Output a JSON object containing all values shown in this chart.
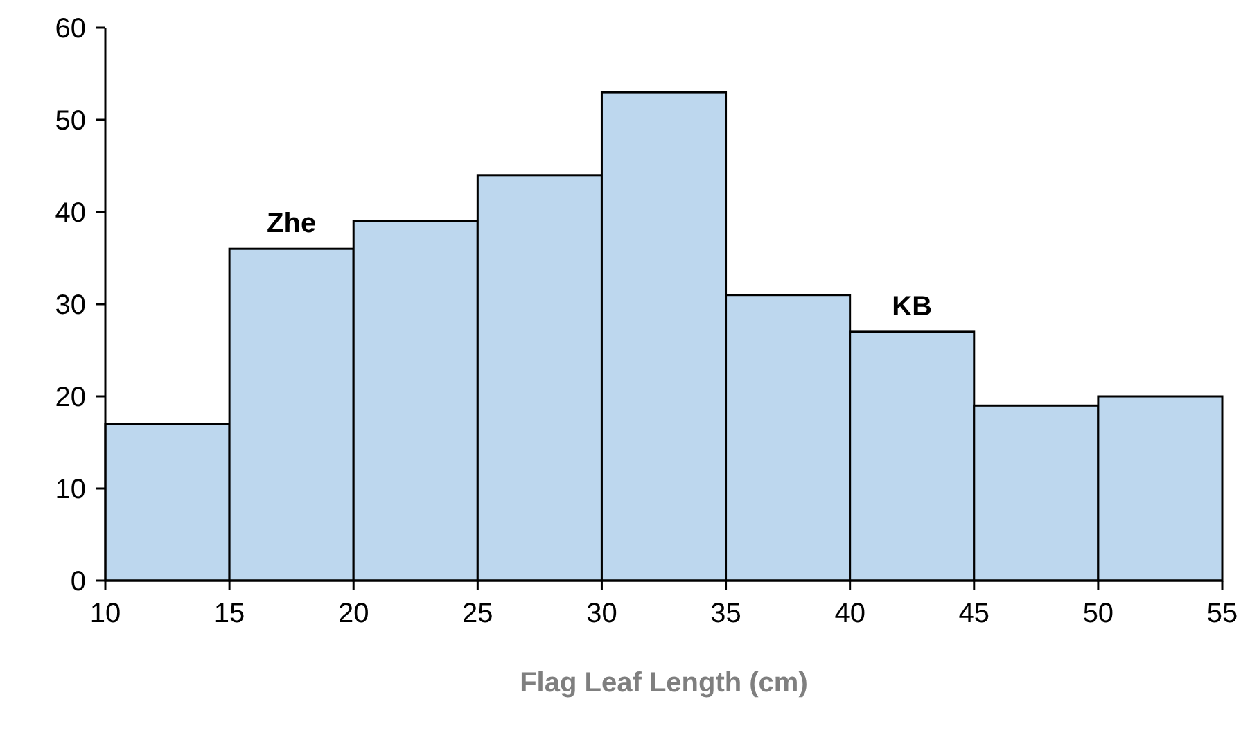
{
  "chart_data": {
    "type": "histogram",
    "xlabel": "Flag Leaf Length (cm)",
    "bins": [
      10,
      15,
      20,
      25,
      30,
      35,
      40,
      45,
      50,
      55
    ],
    "values": [
      17,
      36,
      39,
      44,
      53,
      31,
      27,
      19,
      20
    ],
    "color": "#bdd7ee",
    "xlim": [
      10,
      55
    ],
    "xticks": [
      10,
      15,
      20,
      25,
      30,
      35,
      40,
      45,
      50,
      55
    ],
    "ylim": [
      0,
      60
    ],
    "yticks": [
      0,
      10,
      20,
      30,
      40,
      50,
      60
    ],
    "grid": false,
    "annotations": [
      {
        "text": "Zhe",
        "x": 17.5,
        "y": 36
      },
      {
        "text": "KB",
        "x": 42.5,
        "y": 27
      }
    ]
  }
}
